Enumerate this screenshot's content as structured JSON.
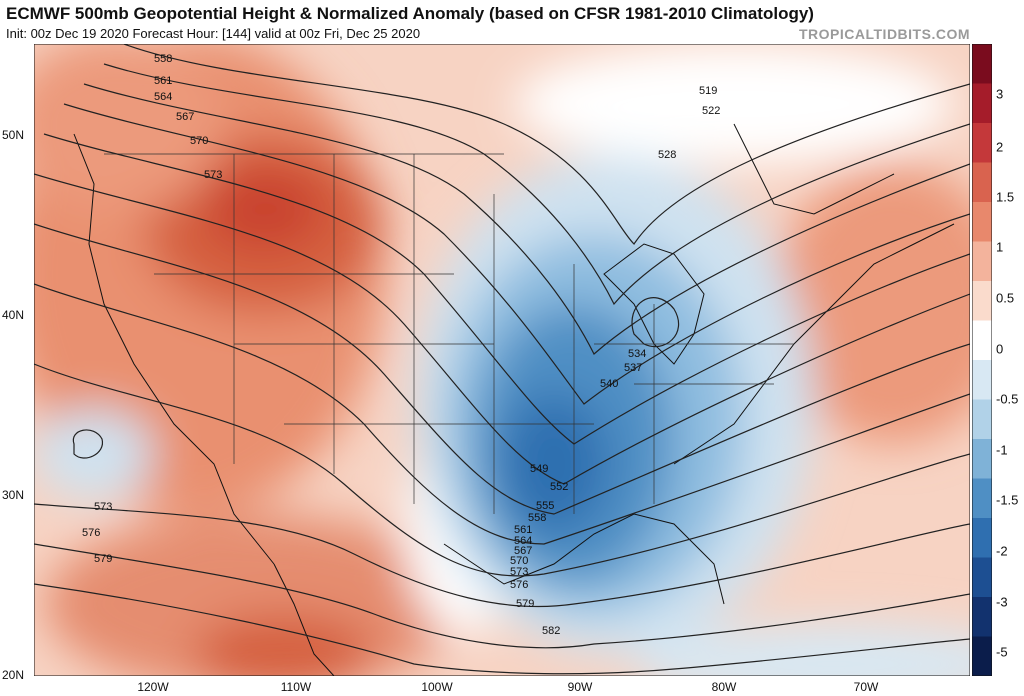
{
  "header": {
    "title": "ECMWF 500mb Geopotential Height & Normalized Anomaly (based on CFSR 1981-2010 Climatology)",
    "subtitle": "Init: 00z Dec 19 2020   Forecast Hour: [144]   valid at 00z Fri, Dec 25 2020",
    "brand": "TROPICALTIDBITS.COM"
  },
  "axes": {
    "lat_labels": [
      "50N",
      "40N",
      "30N",
      "20N"
    ],
    "lon_labels": [
      "120W",
      "110W",
      "100W",
      "90W",
      "80W",
      "70W"
    ]
  },
  "colorbar": {
    "labels": [
      "3",
      "2",
      "1.5",
      "1",
      "0.5",
      "0",
      "-0.5",
      "-1",
      "-1.5",
      "-2",
      "-3",
      "-5"
    ],
    "colors": [
      "#7a0c1e",
      "#a51c2a",
      "#c4383a",
      "#d9634f",
      "#e8886c",
      "#f3b39c",
      "#fadbcc",
      "#ffffff",
      "#d8e8f3",
      "#b1d2e8",
      "#7fb2d7",
      "#4f8fc4",
      "#2f6fb0",
      "#1d4f92",
      "#12326e",
      "#0b1d4b"
    ]
  },
  "map": {
    "contour_labels": [
      "558",
      "561",
      "564",
      "567",
      "570",
      "573",
      "519",
      "522",
      "528",
      "534",
      "537",
      "540",
      "549",
      "552",
      "555",
      "558",
      "561",
      "564",
      "567",
      "570",
      "573",
      "576",
      "579",
      "573",
      "576",
      "579",
      "582"
    ]
  }
}
